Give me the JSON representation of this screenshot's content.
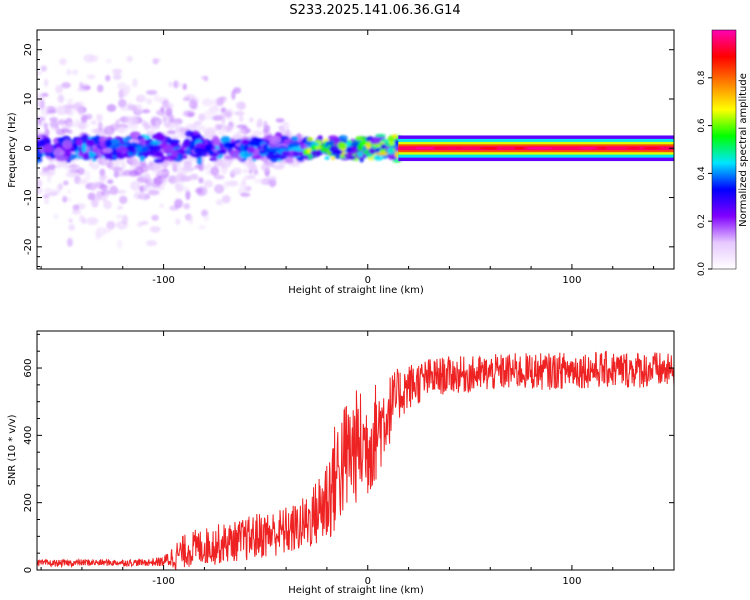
{
  "title": "S233.2025.141.06.36.G14",
  "chart_data": [
    {
      "type": "heatmap",
      "title": "S233.2025.141.06.36.G14",
      "xlabel": "Height of straight line (km)",
      "ylabel": "Frequency (Hz)",
      "xlim": [
        -162,
        150
      ],
      "ylim": [
        -24.5,
        24
      ],
      "x_ticks": [
        -100,
        0,
        100
      ],
      "x_tick_labels": [
        "-100",
        "0",
        "100"
      ],
      "y_ticks": [
        -20,
        -10,
        0,
        10,
        20
      ],
      "y_tick_labels": [
        "-20",
        "-10",
        "0",
        "10",
        "20"
      ],
      "grid": false,
      "colorbar": {
        "label": "Normalized spectral amplitude",
        "range": [
          0,
          1
        ],
        "ticks": [
          0.0,
          0.2,
          0.4,
          0.6,
          0.8
        ],
        "tick_labels": [
          "0.0",
          "0.2",
          "0.4",
          "0.6",
          "0.8"
        ],
        "colormap": [
          "#ffffff",
          "#e6c8ff",
          "#8000ff",
          "#0000ff",
          "#00e6ff",
          "#00ff00",
          "#ffff00",
          "#ff8000",
          "#ff0000",
          "#ff00b4"
        ]
      },
      "features": [
        {
          "x_range": [
            -162,
            -30
          ],
          "freq_center": 0,
          "freq_spread": 24,
          "amplitude": [
            0.05,
            0.35
          ],
          "description_only": false
        },
        {
          "x_range": [
            -30,
            15
          ],
          "freq_center": 0,
          "freq_spread": 3,
          "amplitude": [
            0.2,
            0.7
          ]
        },
        {
          "x_range": [
            15,
            150
          ],
          "freq_center": 0,
          "freq_spread": 1.2,
          "amplitude": [
            0.8,
            1.0
          ]
        }
      ]
    },
    {
      "type": "line",
      "xlabel": "Height of straight line (km)",
      "ylabel": "SNR (10 * v/v)",
      "xlim": [
        -162,
        150
      ],
      "ylim": [
        0,
        710
      ],
      "x_ticks": [
        -100,
        0,
        100
      ],
      "x_tick_labels": [
        "-100",
        "0",
        "100"
      ],
      "y_ticks": [
        0,
        200,
        400,
        600
      ],
      "y_tick_labels": [
        "0",
        "200",
        "400",
        "600"
      ],
      "grid": false,
      "color": "#ee2222",
      "series": [
        {
          "x": [
            -162,
            -150,
            -140,
            -130,
            -120,
            -110,
            -100,
            -95,
            -90,
            -85,
            -80,
            -75,
            -70,
            -65,
            -60,
            -55,
            -50,
            -45,
            -40,
            -35,
            -30,
            -25,
            -20,
            -15,
            -10,
            -5,
            0,
            5,
            10,
            15,
            20,
            30,
            40,
            50,
            60,
            70,
            80,
            90,
            100,
            110,
            120,
            130,
            140,
            150
          ],
          "y": [
            20,
            20,
            22,
            22,
            22,
            22,
            25,
            40,
            55,
            65,
            70,
            75,
            80,
            85,
            90,
            100,
            105,
            110,
            115,
            125,
            140,
            170,
            210,
            290,
            340,
            370,
            370,
            420,
            470,
            520,
            545,
            570,
            580,
            580,
            585,
            590,
            590,
            590,
            595,
            595,
            595,
            595,
            595,
            590
          ],
          "spread": [
            10,
            10,
            10,
            10,
            10,
            10,
            15,
            40,
            50,
            55,
            55,
            60,
            60,
            60,
            65,
            70,
            70,
            70,
            75,
            75,
            85,
            100,
            150,
            170,
            180,
            170,
            160,
            150,
            110,
            80,
            70,
            60,
            55,
            55,
            55,
            55,
            55,
            55,
            55,
            55,
            55,
            55,
            55,
            50
          ]
        }
      ]
    }
  ]
}
